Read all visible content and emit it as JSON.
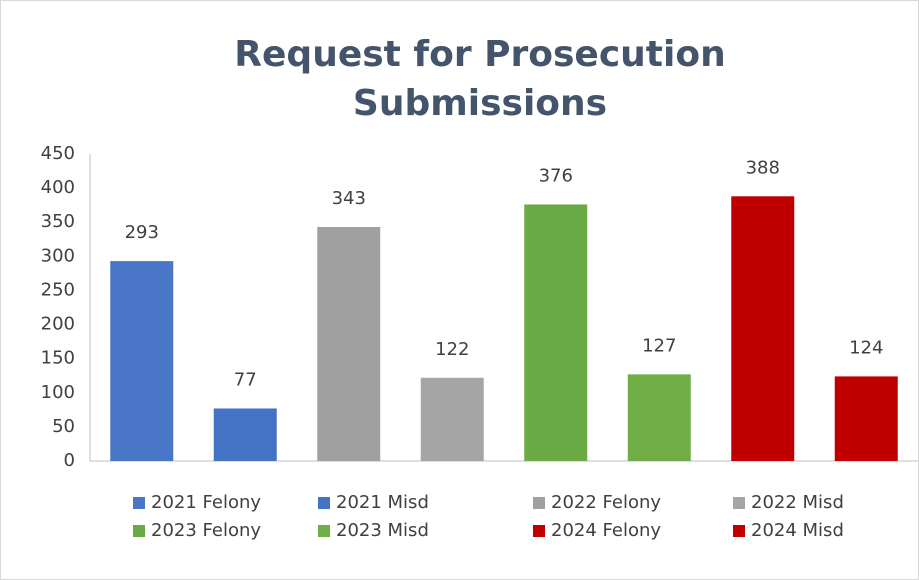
{
  "chart_data": {
    "type": "bar",
    "title": "Request for Prosecution Submissions",
    "series": [
      {
        "name": "2021 Felony",
        "color": "#4a76c8",
        "values": [
          293
        ]
      },
      {
        "name": "2021 Misd",
        "color": "#4472c4",
        "values": [
          77
        ]
      },
      {
        "name": "2022 Felony",
        "color": "#a0a0a0",
        "values": [
          343
        ]
      },
      {
        "name": "2022 Misd",
        "color": "#a5a5a5",
        "values": [
          122
        ]
      },
      {
        "name": "2023 Felony",
        "color": "#6aaa44",
        "values": [
          376
        ]
      },
      {
        "name": "2023 Misd",
        "color": "#70ad47",
        "values": [
          127
        ]
      },
      {
        "name": "2024 Felony",
        "color": "#c00000",
        "values": [
          388
        ]
      },
      {
        "name": "2024 Misd",
        "color": "#c00000",
        "values": [
          124
        ]
      }
    ],
    "ylim": [
      0,
      450
    ],
    "yticks": [
      0,
      50,
      100,
      150,
      200,
      250,
      300,
      350,
      400,
      450
    ],
    "grid": false,
    "legend": "bottom"
  }
}
